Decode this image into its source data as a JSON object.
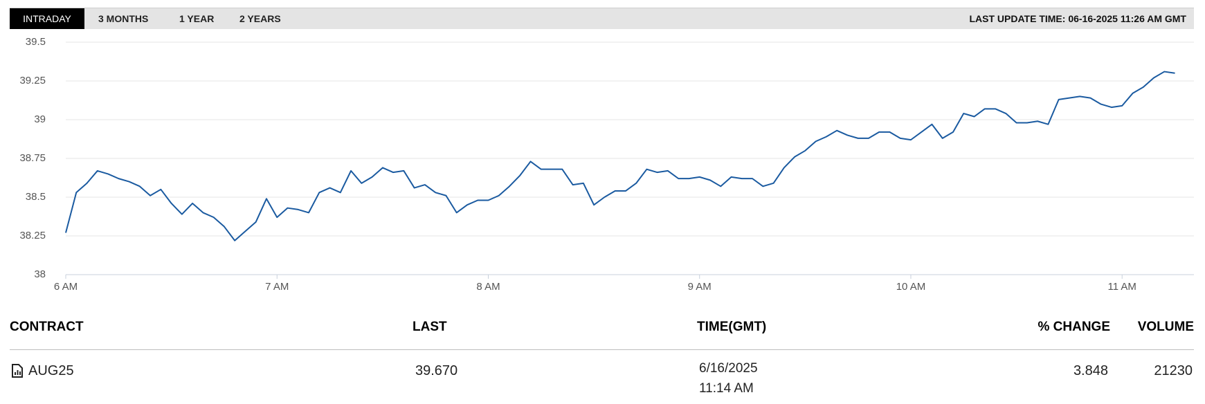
{
  "tabs": [
    "INTRADAY",
    "3 MONTHS",
    "1 YEAR",
    "2 YEARS"
  ],
  "last_update": "LAST UPDATE TIME: 06-16-2025 11:26 AM GMT",
  "chart_data": {
    "type": "line",
    "x": [
      6.0,
      6.05,
      6.1,
      6.15,
      6.2,
      6.25,
      6.3,
      6.35,
      6.4,
      6.45,
      6.5,
      6.55,
      6.6,
      6.65,
      6.7,
      6.75,
      6.8,
      6.85,
      6.9,
      6.95,
      7.0,
      7.05,
      7.1,
      7.15,
      7.2,
      7.25,
      7.3,
      7.35,
      7.4,
      7.45,
      7.5,
      7.55,
      7.6,
      7.65,
      7.7,
      7.75,
      7.8,
      7.85,
      7.9,
      7.95,
      8.0,
      8.05,
      8.1,
      8.15,
      8.2,
      8.25,
      8.3,
      8.35,
      8.4,
      8.45,
      8.5,
      8.55,
      8.6,
      8.65,
      8.7,
      8.75,
      8.8,
      8.85,
      8.9,
      8.95,
      9.0,
      9.05,
      9.1,
      9.15,
      9.2,
      9.25,
      9.3,
      9.35,
      9.4,
      9.45,
      9.5,
      9.55,
      9.6,
      9.65,
      9.7,
      9.75,
      9.8,
      9.85,
      9.9,
      9.95,
      10.0,
      10.05,
      10.1,
      10.15,
      10.2,
      10.25,
      10.3,
      10.35,
      10.4,
      10.45,
      10.5,
      10.55,
      10.6,
      10.65,
      10.7,
      10.75,
      10.8,
      10.85,
      10.9,
      10.95,
      11.0,
      11.05,
      11.1,
      11.15,
      11.2,
      11.25
    ],
    "series": [
      {
        "color": "#1a5aa0",
        "values": [
          38.27,
          38.53,
          38.59,
          38.67,
          38.65,
          38.62,
          38.6,
          38.57,
          38.51,
          38.55,
          38.46,
          38.39,
          38.46,
          38.4,
          38.37,
          38.31,
          38.22,
          38.28,
          38.34,
          38.49,
          38.37,
          38.43,
          38.42,
          38.4,
          38.53,
          38.56,
          38.53,
          38.67,
          38.59,
          38.63,
          38.69,
          38.66,
          38.67,
          38.56,
          38.58,
          38.53,
          38.51,
          38.4,
          38.45,
          38.48,
          38.48,
          38.51,
          38.57,
          38.64,
          38.73,
          38.68,
          38.68,
          38.68,
          38.58,
          38.59,
          38.45,
          38.5,
          38.54,
          38.54,
          38.59,
          38.68,
          38.66,
          38.67,
          38.62,
          38.62,
          38.63,
          38.61,
          38.57,
          38.63,
          38.62,
          38.62,
          38.57,
          38.59,
          38.69,
          38.76,
          38.8,
          38.86,
          38.89,
          38.93,
          38.9,
          38.88,
          38.88,
          38.92,
          38.92,
          38.88,
          38.87,
          38.92,
          38.97,
          38.88,
          38.92,
          39.04,
          39.02,
          39.07,
          39.07,
          39.04,
          38.98,
          38.98,
          38.99,
          38.97,
          39.13,
          39.14,
          39.15,
          39.14,
          39.1,
          39.08,
          39.09,
          39.17,
          39.21,
          39.27,
          39.31,
          39.3
        ]
      }
    ],
    "xlim": [
      6,
      11.34
    ],
    "xticks": [
      {
        "value": 6,
        "label": "6 AM"
      },
      {
        "value": 7,
        "label": "7 AM"
      },
      {
        "value": 8,
        "label": "8 AM"
      },
      {
        "value": 9,
        "label": "9 AM"
      },
      {
        "value": 10,
        "label": "10 AM"
      },
      {
        "value": 11,
        "label": "11 AM"
      }
    ],
    "ylim": [
      38,
      39.5
    ],
    "yticks": [
      38,
      38.25,
      38.5,
      38.75,
      39,
      39.25,
      39.5
    ],
    "grid": true
  },
  "table": {
    "headers": [
      "CONTRACT",
      "LAST",
      "TIME(GMT)",
      "% CHANGE",
      "VOLUME"
    ],
    "rows": [
      {
        "contract": "AUG25",
        "last": "39.670",
        "date": "6/16/2025",
        "time": "11:14 AM",
        "change": "3.848",
        "volume": "21230"
      }
    ]
  }
}
